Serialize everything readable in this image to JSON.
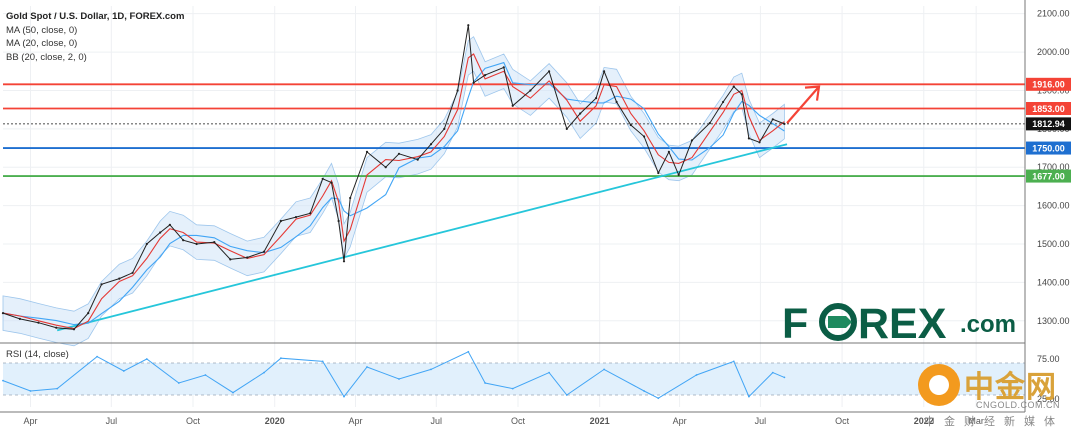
{
  "legend": {
    "title": "Gold Spot / U.S. Dollar, 1D, FOREX.com",
    "ma50": "MA (50, close, 0)",
    "ma20": "MA (20, close, 0)",
    "bb": "BB (20, close, 2, 0)"
  },
  "rsi_label": "RSI (14, close)",
  "brand": {
    "text_left": "F",
    "text_right": "REX",
    "suffix": ".com",
    "color": "#0b5d45",
    "accent": "#1f8a5f"
  },
  "watermark": {
    "chinese": "中金网",
    "url": "CNGOLD.COM.CN",
    "sub": "中金财经新媒体"
  },
  "colors": {
    "price": "#222222",
    "ma20": "#e53935",
    "ma50": "#42a5f5",
    "bb_fill": "#cfe4f7",
    "bb_line": "#9ec6ec",
    "trendline": "#26c6da",
    "level_red": "#f44336",
    "level_blue": "#1e6fd0",
    "level_green": "#4caf50",
    "arrow": "#f44336",
    "rsi": "#42a5f5",
    "rsi_band": "#e1f0fc"
  },
  "chart_data": {
    "type": "line",
    "title": "Gold Spot / U.S. Dollar, 1D, FOREX.com",
    "ylim": [
      1250,
      2120
    ],
    "y_ticks": [
      "2100.00",
      "2000.00",
      "1900.00",
      "1800.00",
      "1700.00",
      "1600.00",
      "1500.00",
      "1400.00",
      "1300.00"
    ],
    "x_ticks": [
      "Apr",
      "Jul",
      "Oct",
      "2020",
      "Apr",
      "Jul",
      "Oct",
      "2021",
      "Apr",
      "Jul",
      "Oct",
      "2022",
      "Mar"
    ],
    "price_series": [
      [
        "2019-03-01",
        1320
      ],
      [
        "2019-03-20",
        1305
      ],
      [
        "2019-04-10",
        1295
      ],
      [
        "2019-04-30",
        1282
      ],
      [
        "2019-05-20",
        1278
      ],
      [
        "2019-06-05",
        1320
      ],
      [
        "2019-06-20",
        1395
      ],
      [
        "2019-07-10",
        1410
      ],
      [
        "2019-07-25",
        1425
      ],
      [
        "2019-08-10",
        1500
      ],
      [
        "2019-08-25",
        1530
      ],
      [
        "2019-09-05",
        1550
      ],
      [
        "2019-09-20",
        1510
      ],
      [
        "2019-10-05",
        1500
      ],
      [
        "2019-10-25",
        1505
      ],
      [
        "2019-11-12",
        1460
      ],
      [
        "2019-12-01",
        1465
      ],
      [
        "2019-12-20",
        1480
      ],
      [
        "2020-01-08",
        1560
      ],
      [
        "2020-01-25",
        1570
      ],
      [
        "2020-02-10",
        1580
      ],
      [
        "2020-02-24",
        1670
      ],
      [
        "2020-03-05",
        1660
      ],
      [
        "2020-03-13",
        1560
      ],
      [
        "2020-03-19",
        1455
      ],
      [
        "2020-03-26",
        1620
      ],
      [
        "2020-04-14",
        1740
      ],
      [
        "2020-05-05",
        1700
      ],
      [
        "2020-05-20",
        1735
      ],
      [
        "2020-06-10",
        1720
      ],
      [
        "2020-06-25",
        1760
      ],
      [
        "2020-07-10",
        1800
      ],
      [
        "2020-07-25",
        1900
      ],
      [
        "2020-08-06",
        2070
      ],
      [
        "2020-08-12",
        1920
      ],
      [
        "2020-08-25",
        1940
      ],
      [
        "2020-09-15",
        1960
      ],
      [
        "2020-09-25",
        1860
      ],
      [
        "2020-10-15",
        1900
      ],
      [
        "2020-11-05",
        1950
      ],
      [
        "2020-11-25",
        1800
      ],
      [
        "2020-12-10",
        1840
      ],
      [
        "2020-12-28",
        1880
      ],
      [
        "2021-01-06",
        1950
      ],
      [
        "2021-01-20",
        1870
      ],
      [
        "2021-02-05",
        1810
      ],
      [
        "2021-02-20",
        1780
      ],
      [
        "2021-03-08",
        1685
      ],
      [
        "2021-03-20",
        1740
      ],
      [
        "2021-03-31",
        1680
      ],
      [
        "2021-04-15",
        1770
      ],
      [
        "2021-05-05",
        1815
      ],
      [
        "2021-05-20",
        1870
      ],
      [
        "2021-06-01",
        1910
      ],
      [
        "2021-06-10",
        1890
      ],
      [
        "2021-06-18",
        1775
      ],
      [
        "2021-06-30",
        1765
      ],
      [
        "2021-07-15",
        1825
      ],
      [
        "2021-07-28",
        1812.94
      ]
    ],
    "levels": [
      {
        "value": 1916,
        "label": "1916.00",
        "color": "#f44336"
      },
      {
        "value": 1853,
        "label": "1853.00",
        "color": "#f44336"
      },
      {
        "value": 1812.94,
        "label": "1812.94",
        "color": "#111111"
      },
      {
        "value": 1750,
        "label": "1750.00",
        "color": "#1e6fd0"
      },
      {
        "value": 1677,
        "label": "1677.00",
        "color": "#4caf50"
      }
    ],
    "trendline": [
      [
        "2019-05-01",
        1275
      ],
      [
        "2021-07-31",
        1760
      ]
    ],
    "arrow": [
      [
        "2021-07-31",
        1815
      ],
      [
        "2021-09-05",
        1910
      ]
    ],
    "rsi": {
      "label": "RSI (14, close)",
      "ticks": [
        "75.00",
        "25.00"
      ],
      "ylim": [
        15,
        90
      ],
      "upper": 70,
      "lower": 30,
      "series": [
        [
          "2019-03-01",
          48
        ],
        [
          "2019-04-01",
          35
        ],
        [
          "2019-05-01",
          38
        ],
        [
          "2019-06-15",
          78
        ],
        [
          "2019-07-15",
          60
        ],
        [
          "2019-08-10",
          75
        ],
        [
          "2019-09-15",
          45
        ],
        [
          "2019-10-15",
          55
        ],
        [
          "2019-11-15",
          33
        ],
        [
          "2019-12-20",
          58
        ],
        [
          "2020-01-08",
          76
        ],
        [
          "2020-02-24",
          72
        ],
        [
          "2020-03-19",
          28
        ],
        [
          "2020-04-14",
          65
        ],
        [
          "2020-05-20",
          50
        ],
        [
          "2020-06-25",
          62
        ],
        [
          "2020-08-06",
          84
        ],
        [
          "2020-08-25",
          45
        ],
        [
          "2020-09-25",
          38
        ],
        [
          "2020-11-05",
          58
        ],
        [
          "2020-11-25",
          30
        ],
        [
          "2021-01-06",
          62
        ],
        [
          "2021-02-20",
          35
        ],
        [
          "2021-03-08",
          26
        ],
        [
          "2021-04-20",
          55
        ],
        [
          "2021-06-01",
          72
        ],
        [
          "2021-06-18",
          28
        ],
        [
          "2021-07-15",
          58
        ],
        [
          "2021-07-28",
          52
        ]
      ]
    }
  }
}
